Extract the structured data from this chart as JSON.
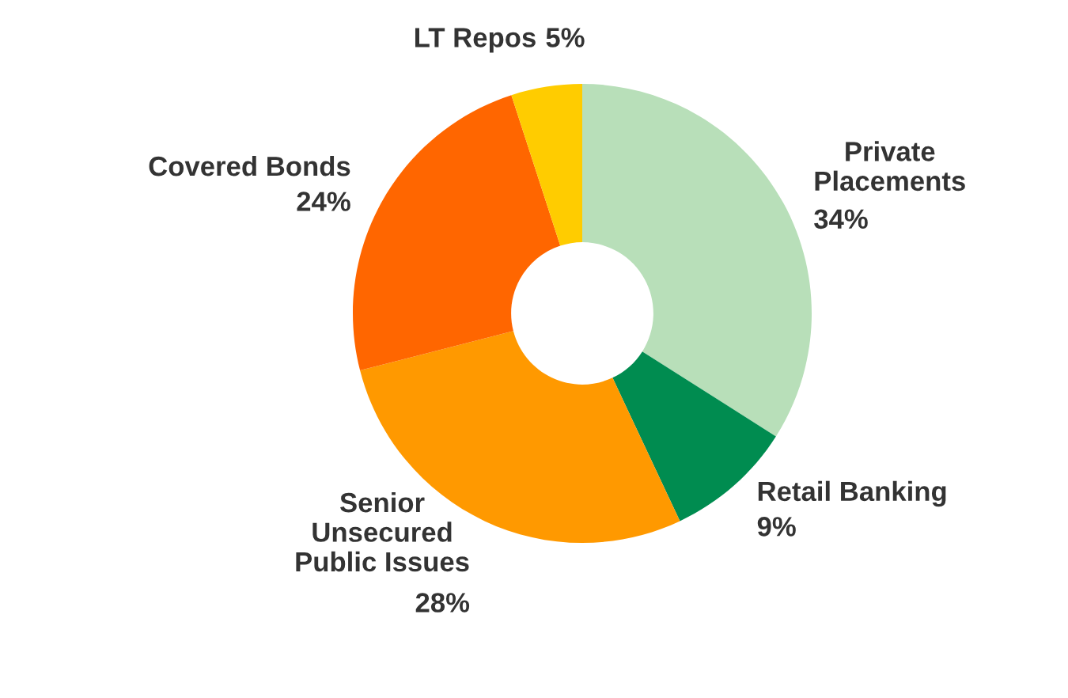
{
  "chart_data": {
    "type": "donut",
    "categories": [
      "Private\nPlacements",
      "Retail Banking",
      "Senior\nUnsecured\nPublic Issues",
      "Covered Bonds",
      "LT Repos"
    ],
    "values": [
      34,
      9,
      28,
      24,
      5
    ],
    "colors": [
      "#b8dfb9",
      "#008c50",
      "#ff9900",
      "#ff6600",
      "#ffcc00"
    ],
    "value_labels": [
      "34%",
      "9%",
      "28%",
      "24%",
      "5%"
    ],
    "legend": false
  }
}
